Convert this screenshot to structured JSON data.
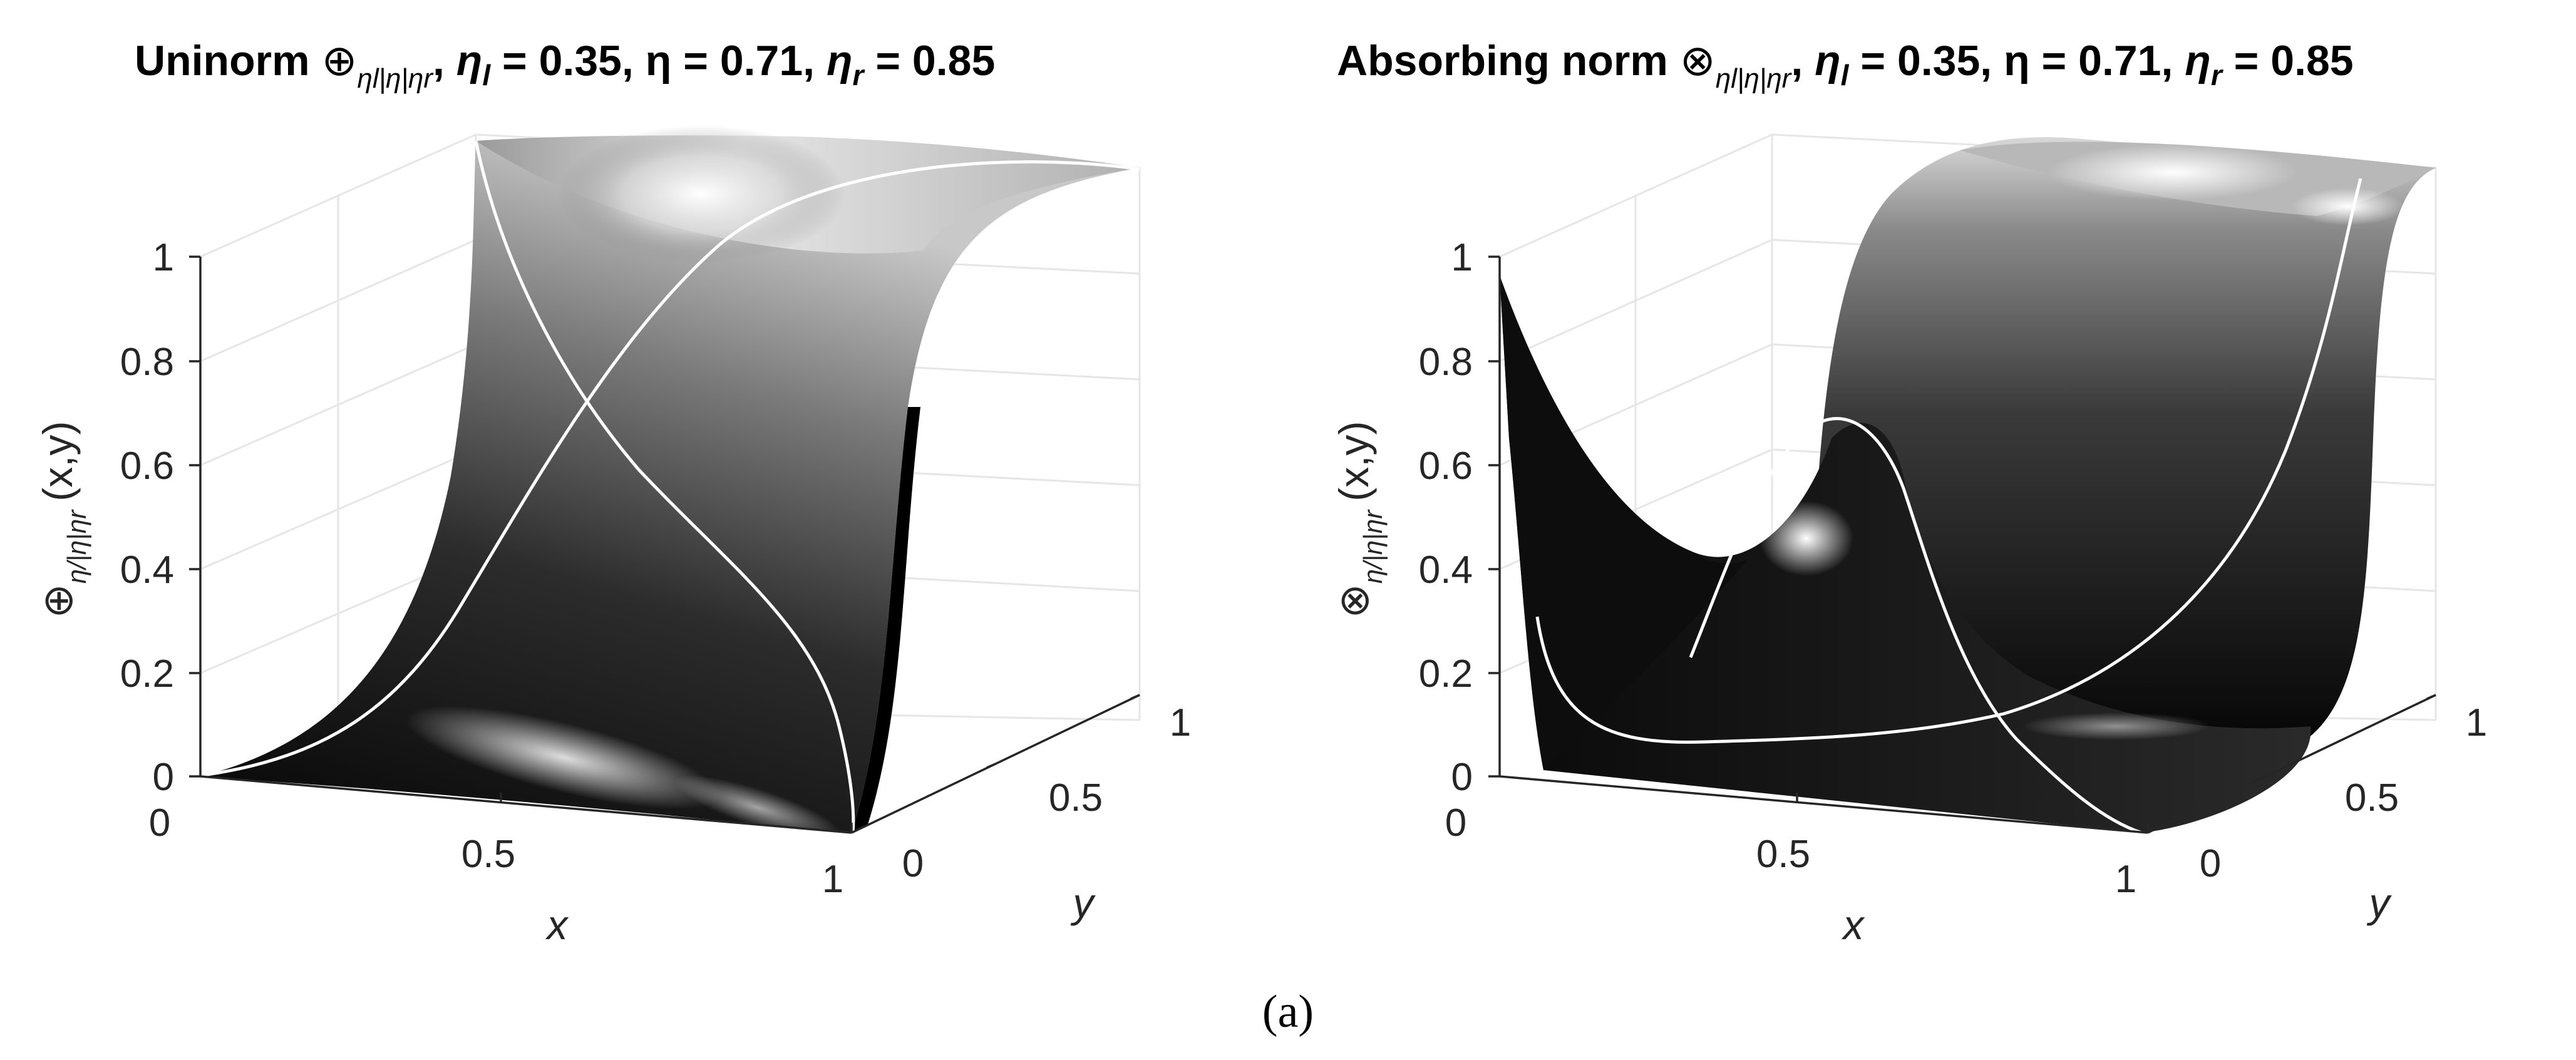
{
  "caption": "(a)",
  "chart_data": [
    {
      "type": "surface3d",
      "title": {
        "prefix": "Uninorm ",
        "operator": "⊕",
        "operator_sub": "ηl|η|ηr",
        "params": ", η_l = 0.35, η = 0.71, η_r = 0.85",
        "p1_sym": "η",
        "p1_sub": "l",
        "p1_val": " = 0.35,",
        "p2": "η = 0.71,",
        "p3_sym": "η",
        "p3_sub": "r",
        "p3_val": " = 0.85"
      },
      "xlabel": "x",
      "ylabel": "y",
      "zlabel": {
        "operator": "⊕",
        "sub": "η/|η|ηr",
        "args": "(x,y)"
      },
      "xlim": [
        0,
        1
      ],
      "ylim": [
        0,
        1
      ],
      "zlim": [
        0,
        1
      ],
      "xticks": [
        "0",
        "0.5",
        "1"
      ],
      "yticks": [
        "0",
        "0.5",
        "1"
      ],
      "zticks": [
        "0",
        "0.2",
        "0.4",
        "0.6",
        "0.8",
        "1"
      ],
      "surface_corners": {
        "f(0,0)": 0,
        "f(1,0)": 0,
        "f(0,1)": 1,
        "f(1,1)": 1
      },
      "colormap": "gray"
    },
    {
      "type": "surface3d",
      "title": {
        "prefix": "Absorbing norm ",
        "operator": "⊗",
        "operator_sub": "ηl|η|ηr",
        "p1_sym": "η",
        "p1_sub": "l",
        "p1_val": " = 0.35,",
        "p2": "η = 0.71,",
        "p3_sym": "η",
        "p3_sub": "r",
        "p3_val": " = 0.85"
      },
      "xlabel": "x",
      "ylabel": "y",
      "zlabel": {
        "operator": "⊗",
        "sub": "η/|η|ηr",
        "args": "(x,y)"
      },
      "xlim": [
        0,
        1
      ],
      "ylim": [
        0,
        1
      ],
      "zlim": [
        0,
        1
      ],
      "xticks": [
        "0",
        "0.5",
        "1"
      ],
      "yticks": [
        "0",
        "0.5",
        "1"
      ],
      "zticks": [
        "0",
        "0.2",
        "0.4",
        "0.6",
        "0.8",
        "1"
      ],
      "surface_corners": {
        "f(0,0)": 0.95,
        "f(1,0)": 0,
        "f(0,1)": 0,
        "f(1,1)": 1
      },
      "colormap": "gray"
    }
  ]
}
